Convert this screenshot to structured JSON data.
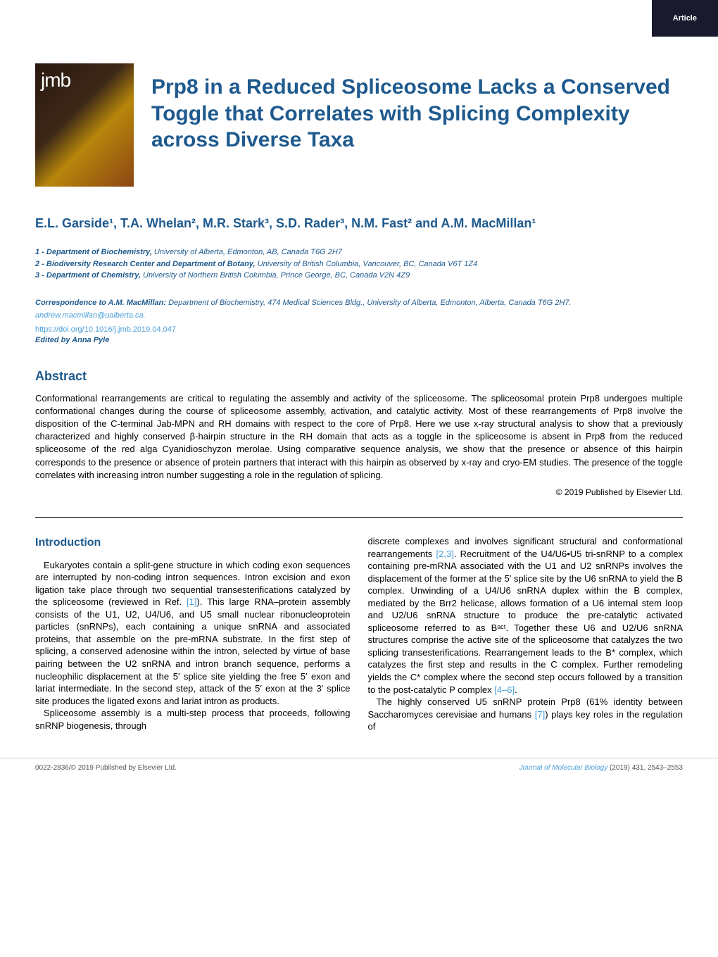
{
  "badge": {
    "label": "Article"
  },
  "logo": {
    "text": "jmb"
  },
  "title": "Prp8 in a Reduced Spliceosome Lacks a Conserved Toggle that Correlates with Splicing Complexity across Diverse Taxa",
  "authors": "E.L. Garside¹, T.A. Whelan², M.R. Stark³, S.D. Rader³, N.M. Fast² and A.M. MacMillan¹",
  "affiliations": [
    {
      "num": "1",
      "dept": "Department of Biochemistry,",
      "rest": " University of Alberta, Edmonton, AB, Canada T6G 2H7"
    },
    {
      "num": "2",
      "dept": "Biodiversity Research Center and Department of Botany,",
      "rest": " University of British Columbia, Vancouver, BC, Canada V6T 1Z4"
    },
    {
      "num": "3",
      "dept": "Department of Chemistry,",
      "rest": " University of Northern British Columbia, Prince George, BC, Canada V2N 4Z9"
    }
  ],
  "correspondence": {
    "label": "Correspondence to A.M. MacMillan:",
    "text": " Department of Biochemistry, 474 Medical Sciences Bldg., University of Alberta, Edmonton, Alberta, Canada T6G 2H7. ",
    "email": "andrew.macmillan@ualberta.ca."
  },
  "doi": "https://doi.org/10.1016/j.jmb.2019.04.047",
  "edited_by": "Edited by Anna Pyle",
  "abstract": {
    "heading": "Abstract",
    "text": "Conformational rearrangements are critical to regulating the assembly and activity of the spliceosome. The spliceosomal protein Prp8 undergoes multiple conformational changes during the course of spliceosome assembly, activation, and catalytic activity. Most of these rearrangements of Prp8 involve the disposition of the C-terminal Jab-MPN and RH domains with respect to the core of Prp8. Here we use x-ray structural analysis to show that a previously characterized and highly conserved β-hairpin structure in the RH domain that acts as a toggle in the spliceosome is absent in Prp8 from the reduced spliceosome of the red alga Cyanidioschyzon merolae. Using comparative sequence analysis, we show that the presence or absence of this hairpin corresponds to the presence or absence of protein partners that interact with this hairpin as observed by x-ray and cryo-EM studies. The presence of the toggle correlates with increasing intron number suggesting a role in the regulation of splicing.",
    "copyright": "© 2019 Published by Elsevier Ltd."
  },
  "introduction": {
    "heading": "Introduction",
    "col1_p1": "Eukaryotes contain a split-gene structure in which coding exon sequences are interrupted by non-coding intron sequences. Intron excision and exon ligation take place through two sequential transesterifications catalyzed by the spliceosome (reviewed in Ref. ",
    "col1_ref1": "[1]",
    "col1_p1b": "). This large RNA–protein assembly consists of the U1, U2, U4/U6, and U5 small nuclear ribonucleoprotein particles (snRNPs), each containing a unique snRNA and associated proteins, that assemble on the pre-mRNA substrate. In the first step of splicing, a conserved adenosine within the intron, selected by virtue of base pairing between the U2 snRNA and intron branch sequence, performs a nucleophilic displacement at the 5′ splice site yielding the free 5′ exon and lariat intermediate. In the second step, attack of the 5′ exon at the 3′ splice site produces the ligated exons and lariat intron as products.",
    "col1_p2": "Spliceosome assembly is a multi-step process that proceeds, following snRNP biogenesis, through",
    "col2_p1": "discrete complexes and involves significant structural and conformational rearrangements ",
    "col2_ref1": "[2,3]",
    "col2_p1b": ". Recruitment of the U4/U6•U5 tri-snRNP to a complex containing pre-mRNA associated with the U1 and U2 snRNPs involves the displacement of the former at the 5′ splice site by the U6 snRNA to yield the B complex. Unwinding of a U4/U6 snRNA duplex within the B complex, mediated by the Brr2 helicase, allows formation of a U6 internal stem loop and U2/U6 snRNA structure to produce the pre-catalytic activated spliceosome referred to as Bᵃᶜᵗ. Together these U6 and U2/U6 snRNA structures comprise the active site of the spliceosome that catalyzes the two splicing transesterifications. Rearrangement leads to the B* complex, which catalyzes the first step and results in the C complex. Further remodeling yields the C* complex where the second step occurs followed by a transition to the post-catalytic P complex ",
    "col2_ref2": "[4–6]",
    "col2_p1c": ".",
    "col2_p2": "The highly conserved U5 snRNP protein Prp8 (61% identity between Saccharomyces cerevisiae and humans ",
    "col2_ref3": "[7]",
    "col2_p2b": ") plays key roles in the regulation of"
  },
  "footer": {
    "left": "0022-2836/© 2019 Published by Elsevier Ltd.",
    "right_journal": "Journal of Molecular Biology",
    "right_citation": " (2019) 431, 2543–2553"
  },
  "colors": {
    "badge_bg": "#1a1a2e",
    "heading_blue": "#1e5a8e",
    "link_blue": "#4a9fd8",
    "text": "#000000",
    "footer_gray": "#555555"
  }
}
